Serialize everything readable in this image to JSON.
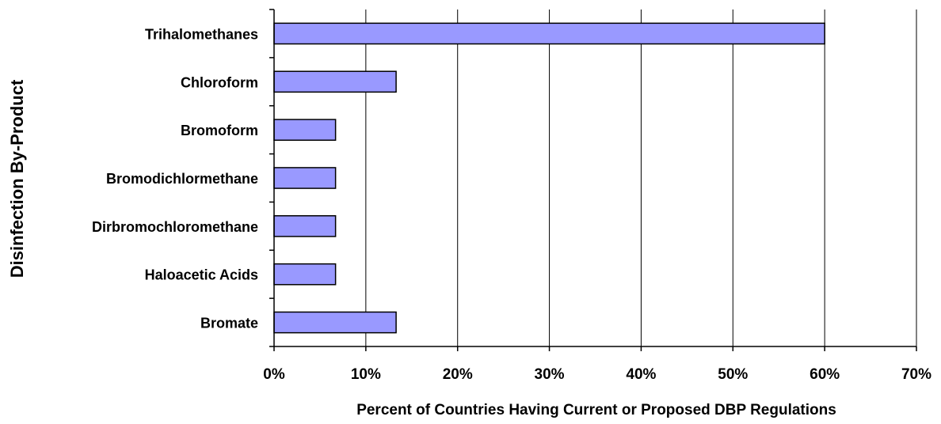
{
  "chart_data": {
    "type": "bar",
    "orientation": "horizontal",
    "title": "",
    "xlabel": "Percent of Countries Having Current or Proposed DBP Regulations",
    "ylabel": "Disinfection By-Product",
    "categories": [
      "Trihalomethanes",
      "Chloroform",
      "Bromoform",
      "Bromodichlormethane",
      "Dirbromochloromethane",
      "Haloacetic Acids",
      "Bromate"
    ],
    "values": [
      60,
      13.3,
      6.7,
      6.7,
      6.7,
      6.7,
      13.3
    ],
    "xlim": [
      0,
      70
    ],
    "x_ticks": [
      0,
      10,
      20,
      30,
      40,
      50,
      60,
      70
    ],
    "x_tick_labels": [
      "0%",
      "10%",
      "20%",
      "30%",
      "40%",
      "50%",
      "60%",
      "70%"
    ],
    "grid": "vertical",
    "legend": "none",
    "bar_color": "#9999ff",
    "bar_edge_color": "#000000"
  }
}
